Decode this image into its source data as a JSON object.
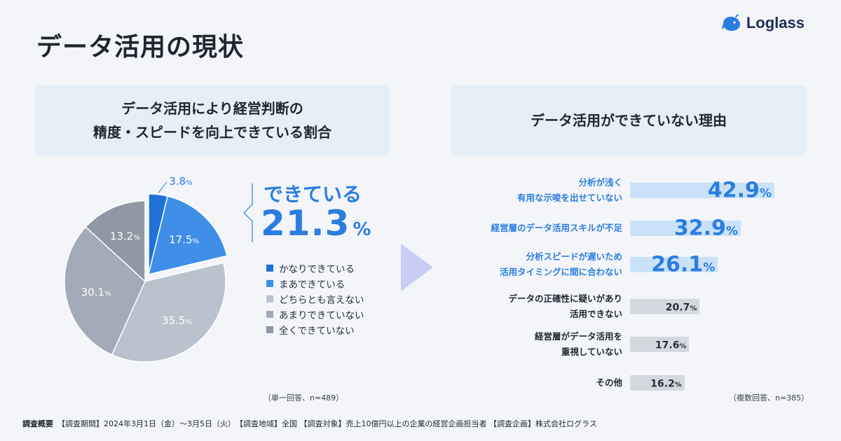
{
  "page_title": "データ活用の現状",
  "logo": {
    "text": "Loglass",
    "icon": "whale-icon"
  },
  "left_panel": {
    "title_line1": "データ活用により経営判断の",
    "title_line2": "精度・スピードを向上できている割合",
    "highlight_label": "できている",
    "highlight_value": "21.3",
    "highlight_unit": "%",
    "note": "（単一回答、n=489）"
  },
  "right_panel": {
    "title": "データ活用ができていない理由",
    "note": "（複数回答、n=385）"
  },
  "chart_data": [
    {
      "type": "pie",
      "categories": [
        "かなりできている",
        "まあできている",
        "どちらとも言えない",
        "あまりできていない",
        "全くできていない"
      ],
      "values": [
        3.8,
        17.5,
        35.5,
        30.1,
        13.2
      ],
      "unit": "%",
      "colors": [
        "#1f72d6",
        "#3f8ee8",
        "#b9c2cd",
        "#a2abb7",
        "#8f98a4"
      ],
      "exploded": [
        0,
        1
      ],
      "legend_position": "right"
    },
    {
      "type": "bar",
      "orientation": "horizontal",
      "categories": [
        [
          "分析が浅く",
          "有用な示唆を出せていない"
        ],
        [
          "経営層のデータ活用スキルが不足"
        ],
        [
          "分析スピードが遅いため",
          "活用タイミングに間に合わない"
        ],
        [
          "データの正確性に疑いがあり",
          "活用できない"
        ],
        [
          "経営層がデータ活用を",
          "重視していない"
        ],
        [
          "その他"
        ]
      ],
      "values": [
        42.9,
        32.9,
        26.1,
        20.7,
        17.6,
        16.2
      ],
      "unit": "%",
      "highlighted": [
        true,
        true,
        true,
        false,
        false,
        false
      ],
      "xlim": [
        0,
        50
      ]
    }
  ],
  "footer": {
    "label": "調査概要",
    "text": "【調査期間】2024年3月1日（金）〜3月5日（火）　【調査地域】全国 【調査対象】売上10億円以上の企業の経営企画担当者 【調査企画】株式会社ログラス"
  }
}
